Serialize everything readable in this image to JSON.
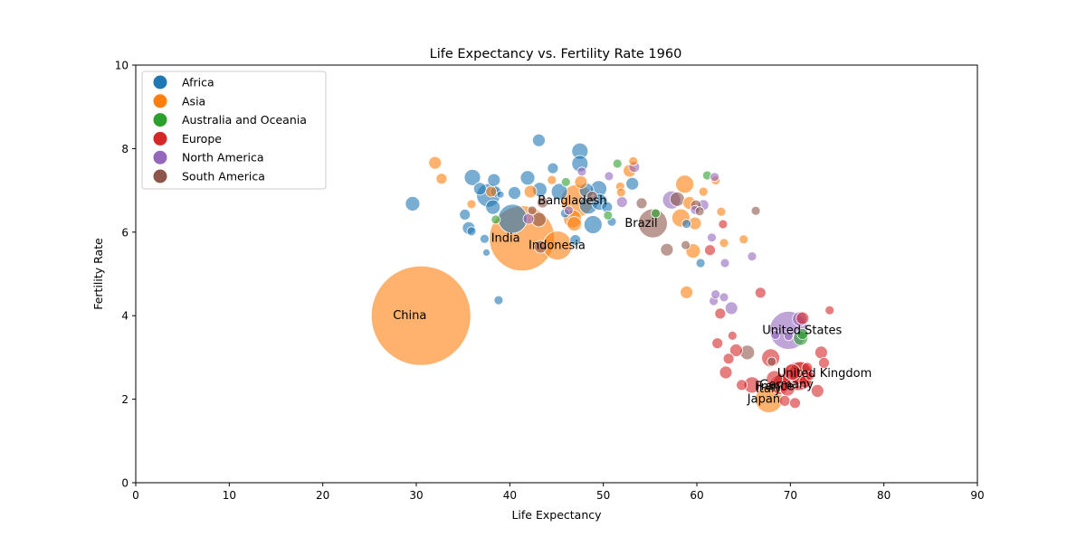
{
  "chart_data": {
    "type": "scatter",
    "title": "Life Expectancy vs. Fertility Rate 1960",
    "xlabel": "Life Expectancy",
    "ylabel": "Fertility Rate",
    "xlim": [
      0,
      90
    ],
    "ylim": [
      0,
      10
    ],
    "xticks": [
      0,
      10,
      20,
      30,
      40,
      50,
      60,
      70,
      80,
      90
    ],
    "yticks": [
      0,
      2,
      4,
      6,
      8,
      10
    ],
    "grid": false,
    "legend_position": "top-left",
    "marker_opacity": 0.6,
    "series": [
      {
        "name": "Africa",
        "color": "#1f77b4",
        "points": [
          [
            29.6,
            6.68,
            8
          ],
          [
            35.2,
            6.42,
            6
          ],
          [
            35.6,
            6.1,
            7
          ],
          [
            35.9,
            6.02,
            5
          ],
          [
            36.0,
            7.31,
            9
          ],
          [
            36.8,
            7.04,
            7
          ],
          [
            37.3,
            5.84,
            5
          ],
          [
            37.5,
            5.51,
            4
          ],
          [
            37.7,
            6.88,
            13
          ],
          [
            38.2,
            6.6,
            8
          ],
          [
            38.3,
            7.25,
            7
          ],
          [
            38.5,
            6.97,
            6
          ],
          [
            38.8,
            4.37,
            5
          ],
          [
            39.0,
            6.9,
            4
          ],
          [
            40.3,
            6.32,
            16
          ],
          [
            40.5,
            6.94,
            7
          ],
          [
            41.9,
            7.3,
            8
          ],
          [
            43.1,
            8.2,
            7
          ],
          [
            43.2,
            7.02,
            8
          ],
          [
            44.6,
            7.53,
            6
          ],
          [
            45.3,
            6.97,
            9
          ],
          [
            45.9,
            6.45,
            5
          ],
          [
            47.0,
            5.81,
            6
          ],
          [
            47.5,
            7.94,
            9
          ],
          [
            47.5,
            7.64,
            9
          ],
          [
            48.2,
            7.0,
            8
          ],
          [
            48.4,
            6.65,
            10
          ],
          [
            48.9,
            6.18,
            10
          ],
          [
            49.5,
            7.04,
            9
          ],
          [
            49.6,
            6.72,
            9
          ],
          [
            50.4,
            6.6,
            6
          ],
          [
            50.9,
            6.25,
            5
          ],
          [
            53.1,
            7.16,
            7
          ],
          [
            58.9,
            6.2,
            5
          ],
          [
            60.4,
            5.26,
            5
          ]
        ]
      },
      {
        "name": "Asia",
        "color": "#ff7f0e",
        "points": [
          [
            30.5,
            4.0,
            55
          ],
          [
            41.3,
            5.85,
            36
          ],
          [
            45.1,
            5.68,
            16
          ],
          [
            47.2,
            6.75,
            18
          ],
          [
            32.0,
            7.66,
            7
          ],
          [
            32.7,
            7.28,
            6
          ],
          [
            35.9,
            6.67,
            5
          ],
          [
            38.0,
            6.97,
            6
          ],
          [
            42.2,
            6.97,
            7
          ],
          [
            44.5,
            7.25,
            5
          ],
          [
            46.7,
            6.32,
            10
          ],
          [
            46.9,
            6.2,
            8
          ],
          [
            47.6,
            7.2,
            7
          ],
          [
            51.8,
            7.09,
            5
          ],
          [
            51.9,
            6.95,
            5
          ],
          [
            52.8,
            7.47,
            7
          ],
          [
            53.2,
            7.7,
            5
          ],
          [
            58.3,
            6.34,
            10
          ],
          [
            58.7,
            7.15,
            10
          ],
          [
            59.2,
            6.7,
            7
          ],
          [
            59.6,
            5.55,
            8
          ],
          [
            59.8,
            6.21,
            7
          ],
          [
            60.7,
            6.97,
            5
          ],
          [
            62.0,
            7.24,
            5
          ],
          [
            62.6,
            6.49,
            5
          ],
          [
            62.9,
            5.74,
            5
          ],
          [
            65.0,
            5.83,
            5
          ],
          [
            58.9,
            4.56,
            7
          ],
          [
            67.7,
            2.0,
            15
          ]
        ]
      },
      {
        "name": "Australia and Oceania",
        "color": "#2ca02c",
        "points": [
          [
            38.5,
            6.3,
            5
          ],
          [
            46.0,
            7.2,
            5
          ],
          [
            50.5,
            6.4,
            5
          ],
          [
            51.5,
            7.64,
            5
          ],
          [
            55.6,
            6.45,
            5
          ],
          [
            61.1,
            7.36,
            5
          ],
          [
            71.1,
            3.46,
            8
          ],
          [
            71.3,
            3.56,
            6
          ]
        ]
      },
      {
        "name": "Europe",
        "color": "#d62728",
        "points": [
          [
            61.4,
            5.57,
            6
          ],
          [
            62.5,
            4.05,
            6
          ],
          [
            62.8,
            6.19,
            5
          ],
          [
            62.2,
            3.34,
            6
          ],
          [
            63.1,
            2.64,
            7
          ],
          [
            63.4,
            2.97,
            6
          ],
          [
            63.8,
            3.52,
            5
          ],
          [
            64.2,
            3.17,
            7
          ],
          [
            64.8,
            2.34,
            6
          ],
          [
            65.9,
            2.34,
            9
          ],
          [
            66.8,
            4.55,
            6
          ],
          [
            67.9,
            2.99,
            10
          ],
          [
            68.3,
            2.49,
            9
          ],
          [
            68.9,
            2.35,
            11
          ],
          [
            69.1,
            2.39,
            10
          ],
          [
            69.7,
            2.25,
            8
          ],
          [
            69.4,
            1.96,
            6
          ],
          [
            70.2,
            2.65,
            9
          ],
          [
            70.5,
            1.91,
            6
          ],
          [
            70.8,
            2.55,
            16
          ],
          [
            71.1,
            2.62,
            13
          ],
          [
            71.3,
            3.94,
            7
          ],
          [
            71.6,
            2.42,
            7
          ],
          [
            71.8,
            2.75,
            6
          ],
          [
            72.1,
            2.56,
            5
          ],
          [
            72.9,
            2.2,
            7
          ],
          [
            73.3,
            3.12,
            7
          ],
          [
            73.6,
            2.87,
            6
          ],
          [
            74.2,
            4.13,
            5
          ]
        ]
      },
      {
        "name": "North America",
        "color": "#9467bd",
        "points": [
          [
            42.0,
            6.32,
            6
          ],
          [
            46.3,
            6.52,
            5
          ],
          [
            47.7,
            7.45,
            5
          ],
          [
            50.6,
            7.34,
            5
          ],
          [
            52.0,
            6.72,
            6
          ],
          [
            53.3,
            7.56,
            6
          ],
          [
            57.3,
            6.77,
            10
          ],
          [
            59.8,
            6.53,
            5
          ],
          [
            60.7,
            6.65,
            6
          ],
          [
            61.6,
            5.87,
            5
          ],
          [
            61.8,
            4.35,
            5
          ],
          [
            62.0,
            4.51,
            5
          ],
          [
            61.9,
            7.32,
            5
          ],
          [
            62.9,
            4.44,
            5
          ],
          [
            63.0,
            5.26,
            5
          ],
          [
            63.7,
            4.18,
            7
          ],
          [
            65.9,
            5.42,
            5
          ],
          [
            68.4,
            3.54,
            5
          ],
          [
            69.8,
            3.51,
            5
          ],
          [
            69.8,
            3.65,
            21
          ],
          [
            71.0,
            3.92,
            8
          ]
        ]
      },
      {
        "name": "South America",
        "color": "#8c564b",
        "points": [
          [
            42.4,
            6.52,
            5
          ],
          [
            43.1,
            6.3,
            8
          ],
          [
            43.3,
            5.65,
            7
          ],
          [
            43.5,
            6.71,
            6
          ],
          [
            48.8,
            6.85,
            6
          ],
          [
            54.1,
            6.69,
            6
          ],
          [
            55.3,
            6.21,
            16
          ],
          [
            56.8,
            5.58,
            7
          ],
          [
            57.9,
            6.79,
            8
          ],
          [
            58.8,
            5.69,
            5
          ],
          [
            59.9,
            6.64,
            6
          ],
          [
            60.3,
            6.5,
            5
          ],
          [
            65.4,
            3.12,
            8
          ],
          [
            66.3,
            6.51,
            5
          ],
          [
            68.0,
            2.9,
            5
          ]
        ]
      }
    ],
    "annotations": [
      {
        "text": "China",
        "x": 27.5,
        "y": 4.0
      },
      {
        "text": "India",
        "x": 38.0,
        "y": 5.85
      },
      {
        "text": "Indonesia",
        "x": 42.0,
        "y": 5.68
      },
      {
        "text": "Bangladesh",
        "x": 43.0,
        "y": 6.75
      },
      {
        "text": "Brazil",
        "x": 52.3,
        "y": 6.21
      },
      {
        "text": "United States",
        "x": 67.0,
        "y": 3.65
      },
      {
        "text": "United Kingdom",
        "x": 68.6,
        "y": 2.62
      },
      {
        "text": "Germany",
        "x": 66.7,
        "y": 2.35
      },
      {
        "text": "France",
        "x": 66.2,
        "y": 2.3
      },
      {
        "text": "Italy",
        "x": 66.3,
        "y": 2.25
      },
      {
        "text": "Japan",
        "x": 65.4,
        "y": 2.0
      }
    ]
  }
}
